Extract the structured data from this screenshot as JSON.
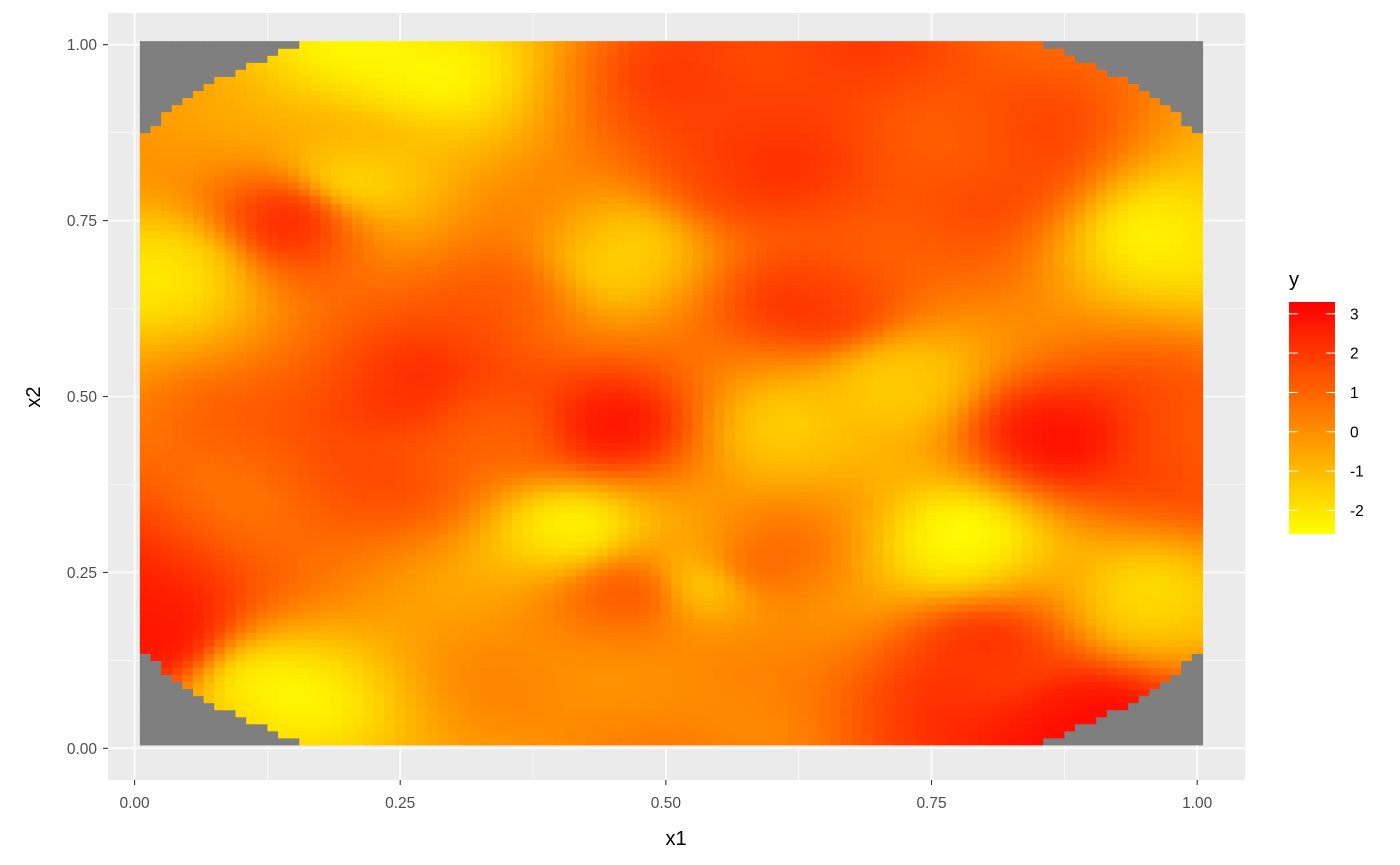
{
  "chart_data": {
    "type": "heatmap",
    "title": "",
    "xlabel": "x1",
    "ylabel": "x2",
    "xlim": [
      -0.025,
      1.045
    ],
    "ylim": [
      -0.045,
      1.045
    ],
    "x_ticks": [
      0.0,
      0.25,
      0.5,
      0.75,
      1.0
    ],
    "x_tick_labels": [
      "0.00",
      "0.25",
      "0.50",
      "0.75",
      "1.00"
    ],
    "y_ticks": [
      0.0,
      0.25,
      0.5,
      0.75,
      1.0
    ],
    "y_tick_labels": [
      "0.00",
      "0.25",
      "0.50",
      "0.75",
      "1.00"
    ],
    "grid": true,
    "na_color": "#7f7f7f",
    "fill_range": [
      -2.6,
      3.3
    ],
    "grid_domain": {
      "x": [
        0.005,
        1.005
      ],
      "y": [
        0.005,
        1.005
      ]
    },
    "hotspots": [
      {
        "x": 0.15,
        "y": 0.76,
        "v": 2.3
      },
      {
        "x": 0.56,
        "y": 0.82,
        "v": 2.0
      },
      {
        "x": 0.58,
        "y": 0.97,
        "v": 2.0
      },
      {
        "x": 0.81,
        "y": 0.83,
        "v": 1.6
      },
      {
        "x": 0.65,
        "y": 0.63,
        "v": 2.1
      },
      {
        "x": 0.25,
        "y": 0.51,
        "v": 2.2
      },
      {
        "x": 0.44,
        "y": 0.46,
        "v": 2.6
      },
      {
        "x": 0.35,
        "y": 0.46,
        "v": 1.4
      },
      {
        "x": 0.86,
        "y": 0.45,
        "v": 2.8
      },
      {
        "x": 0.99,
        "y": 0.41,
        "v": 1.6
      },
      {
        "x": 0.02,
        "y": 0.16,
        "v": 3.2
      },
      {
        "x": 0.79,
        "y": 0.13,
        "v": 2.1
      },
      {
        "x": 0.89,
        "y": 0.04,
        "v": 3.3
      },
      {
        "x": 0.47,
        "y": 0.22,
        "v": 1.3
      },
      {
        "x": 0.58,
        "y": 0.26,
        "v": 1.1
      },
      {
        "x": 0.25,
        "y": 0.39,
        "v": 1.2
      },
      {
        "x": 0.34,
        "y": 0.63,
        "v": 1.2
      },
      {
        "x": 0.12,
        "y": 0.09,
        "v": -2.3
      },
      {
        "x": 0.41,
        "y": 0.31,
        "v": -2.6
      },
      {
        "x": 0.78,
        "y": 0.29,
        "v": -2.5
      },
      {
        "x": 0.25,
        "y": 0.98,
        "v": -2.4
      },
      {
        "x": 0.2,
        "y": 0.81,
        "v": -1.8
      },
      {
        "x": 0.98,
        "y": 0.72,
        "v": -2.0
      },
      {
        "x": 0.04,
        "y": 0.68,
        "v": -1.8
      },
      {
        "x": 0.72,
        "y": 0.52,
        "v": -1.8
      },
      {
        "x": 0.46,
        "y": 0.7,
        "v": -1.5
      },
      {
        "x": 0.54,
        "y": 0.23,
        "v": -1.6
      },
      {
        "x": 0.96,
        "y": 0.2,
        "v": -1.5
      },
      {
        "x": 0.62,
        "y": 0.44,
        "v": -1.2
      }
    ],
    "legend": {
      "title": "y",
      "position": "right",
      "colors": [
        "#FFFF00",
        "#FF0000"
      ],
      "breaks": [
        3,
        2,
        1,
        0,
        -1,
        -2
      ],
      "break_labels": [
        "3",
        "2",
        "1",
        "0",
        "-1",
        "-2"
      ]
    }
  }
}
